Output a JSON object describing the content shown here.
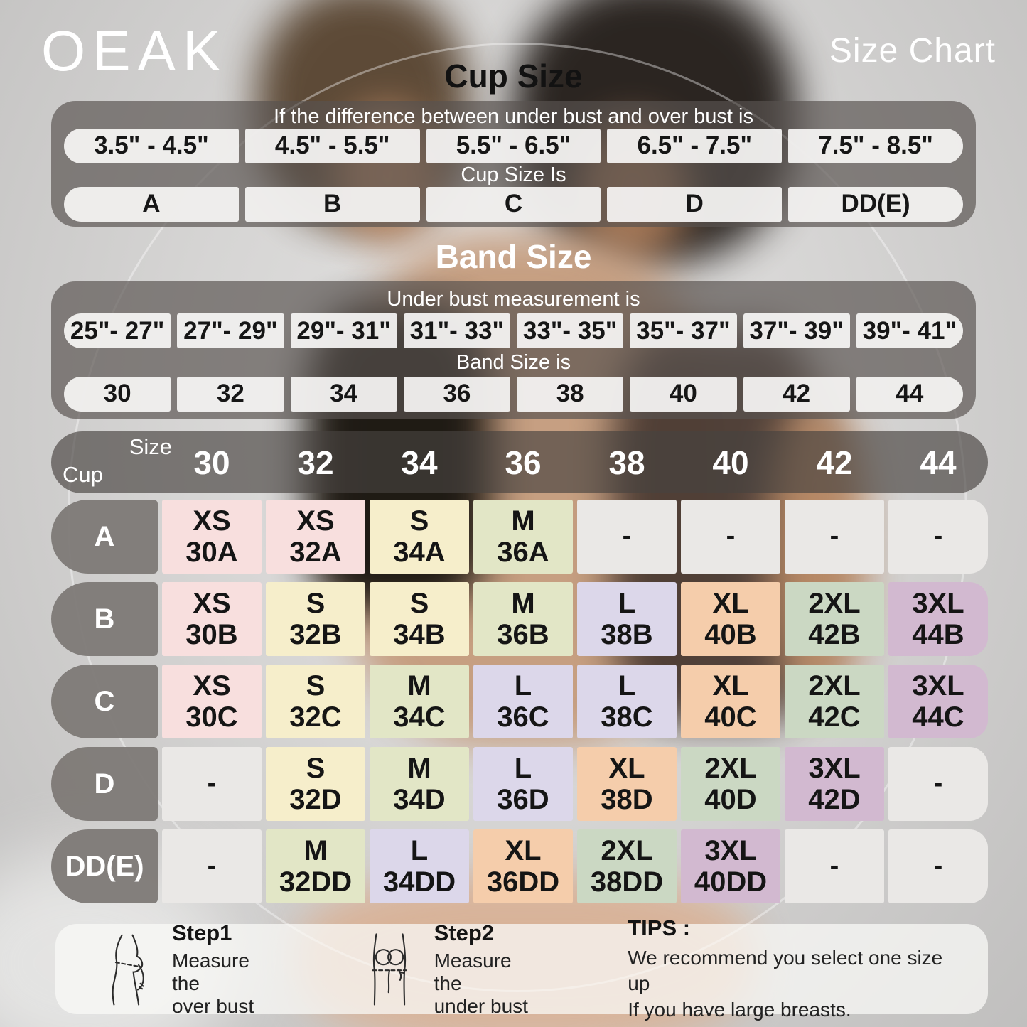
{
  "brand": "OEAK",
  "page_title": "Size Chart",
  "chart_data": [
    {
      "type": "table",
      "title": "Cup Size",
      "caption": "If the  difference between under bust and over bust is",
      "columns": [
        "3.5\" - 4.5\"",
        "4.5\" - 5.5\"",
        "5.5\" - 6.5\"",
        "6.5\" - 7.5\"",
        "7.5\" - 8.5\""
      ],
      "mid_caption": "Cup Size Is",
      "values": [
        "A",
        "B",
        "C",
        "D",
        "DD(E)"
      ]
    },
    {
      "type": "table",
      "title": "Band Size",
      "caption": "Under bust measurement is",
      "columns": [
        "25\"- 27\"",
        "27\"- 29\"",
        "29\"- 31\"",
        "31\"- 33\"",
        "33\"- 35\"",
        "35\"- 37\"",
        "37\"- 39\"",
        "39\"- 41\""
      ],
      "mid_caption": "Band Size is",
      "values": [
        "30",
        "32",
        "34",
        "36",
        "38",
        "40",
        "42",
        "44"
      ]
    },
    {
      "type": "table",
      "title": "Cup by band size matrix",
      "corner": {
        "top": "Size",
        "bottom": "Cup"
      },
      "columns": [
        "30",
        "32",
        "34",
        "36",
        "38",
        "40",
        "42",
        "44"
      ],
      "rows": [
        {
          "cup": "A",
          "cells": [
            {
              "size": "XS",
              "code": "30A"
            },
            {
              "size": "XS",
              "code": "32A"
            },
            {
              "size": "S",
              "code": "34A"
            },
            {
              "size": "M",
              "code": "36A"
            },
            {
              "size": "-"
            },
            {
              "size": "-"
            },
            {
              "size": "-"
            },
            {
              "size": "-"
            }
          ]
        },
        {
          "cup": "B",
          "cells": [
            {
              "size": "XS",
              "code": "30B"
            },
            {
              "size": "S",
              "code": "32B"
            },
            {
              "size": "S",
              "code": "34B"
            },
            {
              "size": "M",
              "code": "36B"
            },
            {
              "size": "L",
              "code": "38B"
            },
            {
              "size": "XL",
              "code": "40B"
            },
            {
              "size": "2XL",
              "code": "42B"
            },
            {
              "size": "3XL",
              "code": "44B"
            }
          ]
        },
        {
          "cup": "C",
          "cells": [
            {
              "size": "XS",
              "code": "30C"
            },
            {
              "size": "S",
              "code": "32C"
            },
            {
              "size": "M",
              "code": "34C"
            },
            {
              "size": "L",
              "code": "36C"
            },
            {
              "size": "L",
              "code": "38C"
            },
            {
              "size": "XL",
              "code": "40C"
            },
            {
              "size": "2XL",
              "code": "42C"
            },
            {
              "size": "3XL",
              "code": "44C"
            }
          ]
        },
        {
          "cup": "D",
          "cells": [
            {
              "size": "-"
            },
            {
              "size": "S",
              "code": "32D"
            },
            {
              "size": "M",
              "code": "34D"
            },
            {
              "size": "L",
              "code": "36D"
            },
            {
              "size": "XL",
              "code": "38D"
            },
            {
              "size": "2XL",
              "code": "40D"
            },
            {
              "size": "3XL",
              "code": "42D"
            },
            {
              "size": "-"
            }
          ]
        },
        {
          "cup": "DD(E)",
          "cells": [
            {
              "size": "-"
            },
            {
              "size": "M",
              "code": "32DD"
            },
            {
              "size": "L",
              "code": "34DD"
            },
            {
              "size": "XL",
              "code": "36DD"
            },
            {
              "size": "2XL",
              "code": "38DD"
            },
            {
              "size": "3XL",
              "code": "40DD"
            },
            {
              "size": "-"
            },
            {
              "size": "-"
            }
          ]
        }
      ]
    }
  ],
  "size_colors": {
    "XS": "#f8dfde",
    "S": "#f6eecb",
    "M": "#e2e6c6",
    "L": "#dcd7ea",
    "XL": "#f5cdab",
    "2XL": "#cbd8c3",
    "3XL": "#d2b9d0",
    "-": "#eae8e6"
  },
  "footer": {
    "steps": [
      {
        "title": "Step1",
        "lines": [
          "Measure the",
          "over bust"
        ]
      },
      {
        "title": "Step2",
        "lines": [
          "Measure the",
          "under bust"
        ]
      }
    ],
    "tips_title": "TIPS :",
    "tips_lines": [
      "We recommend you select one size up",
      "If you have large breasts."
    ]
  }
}
